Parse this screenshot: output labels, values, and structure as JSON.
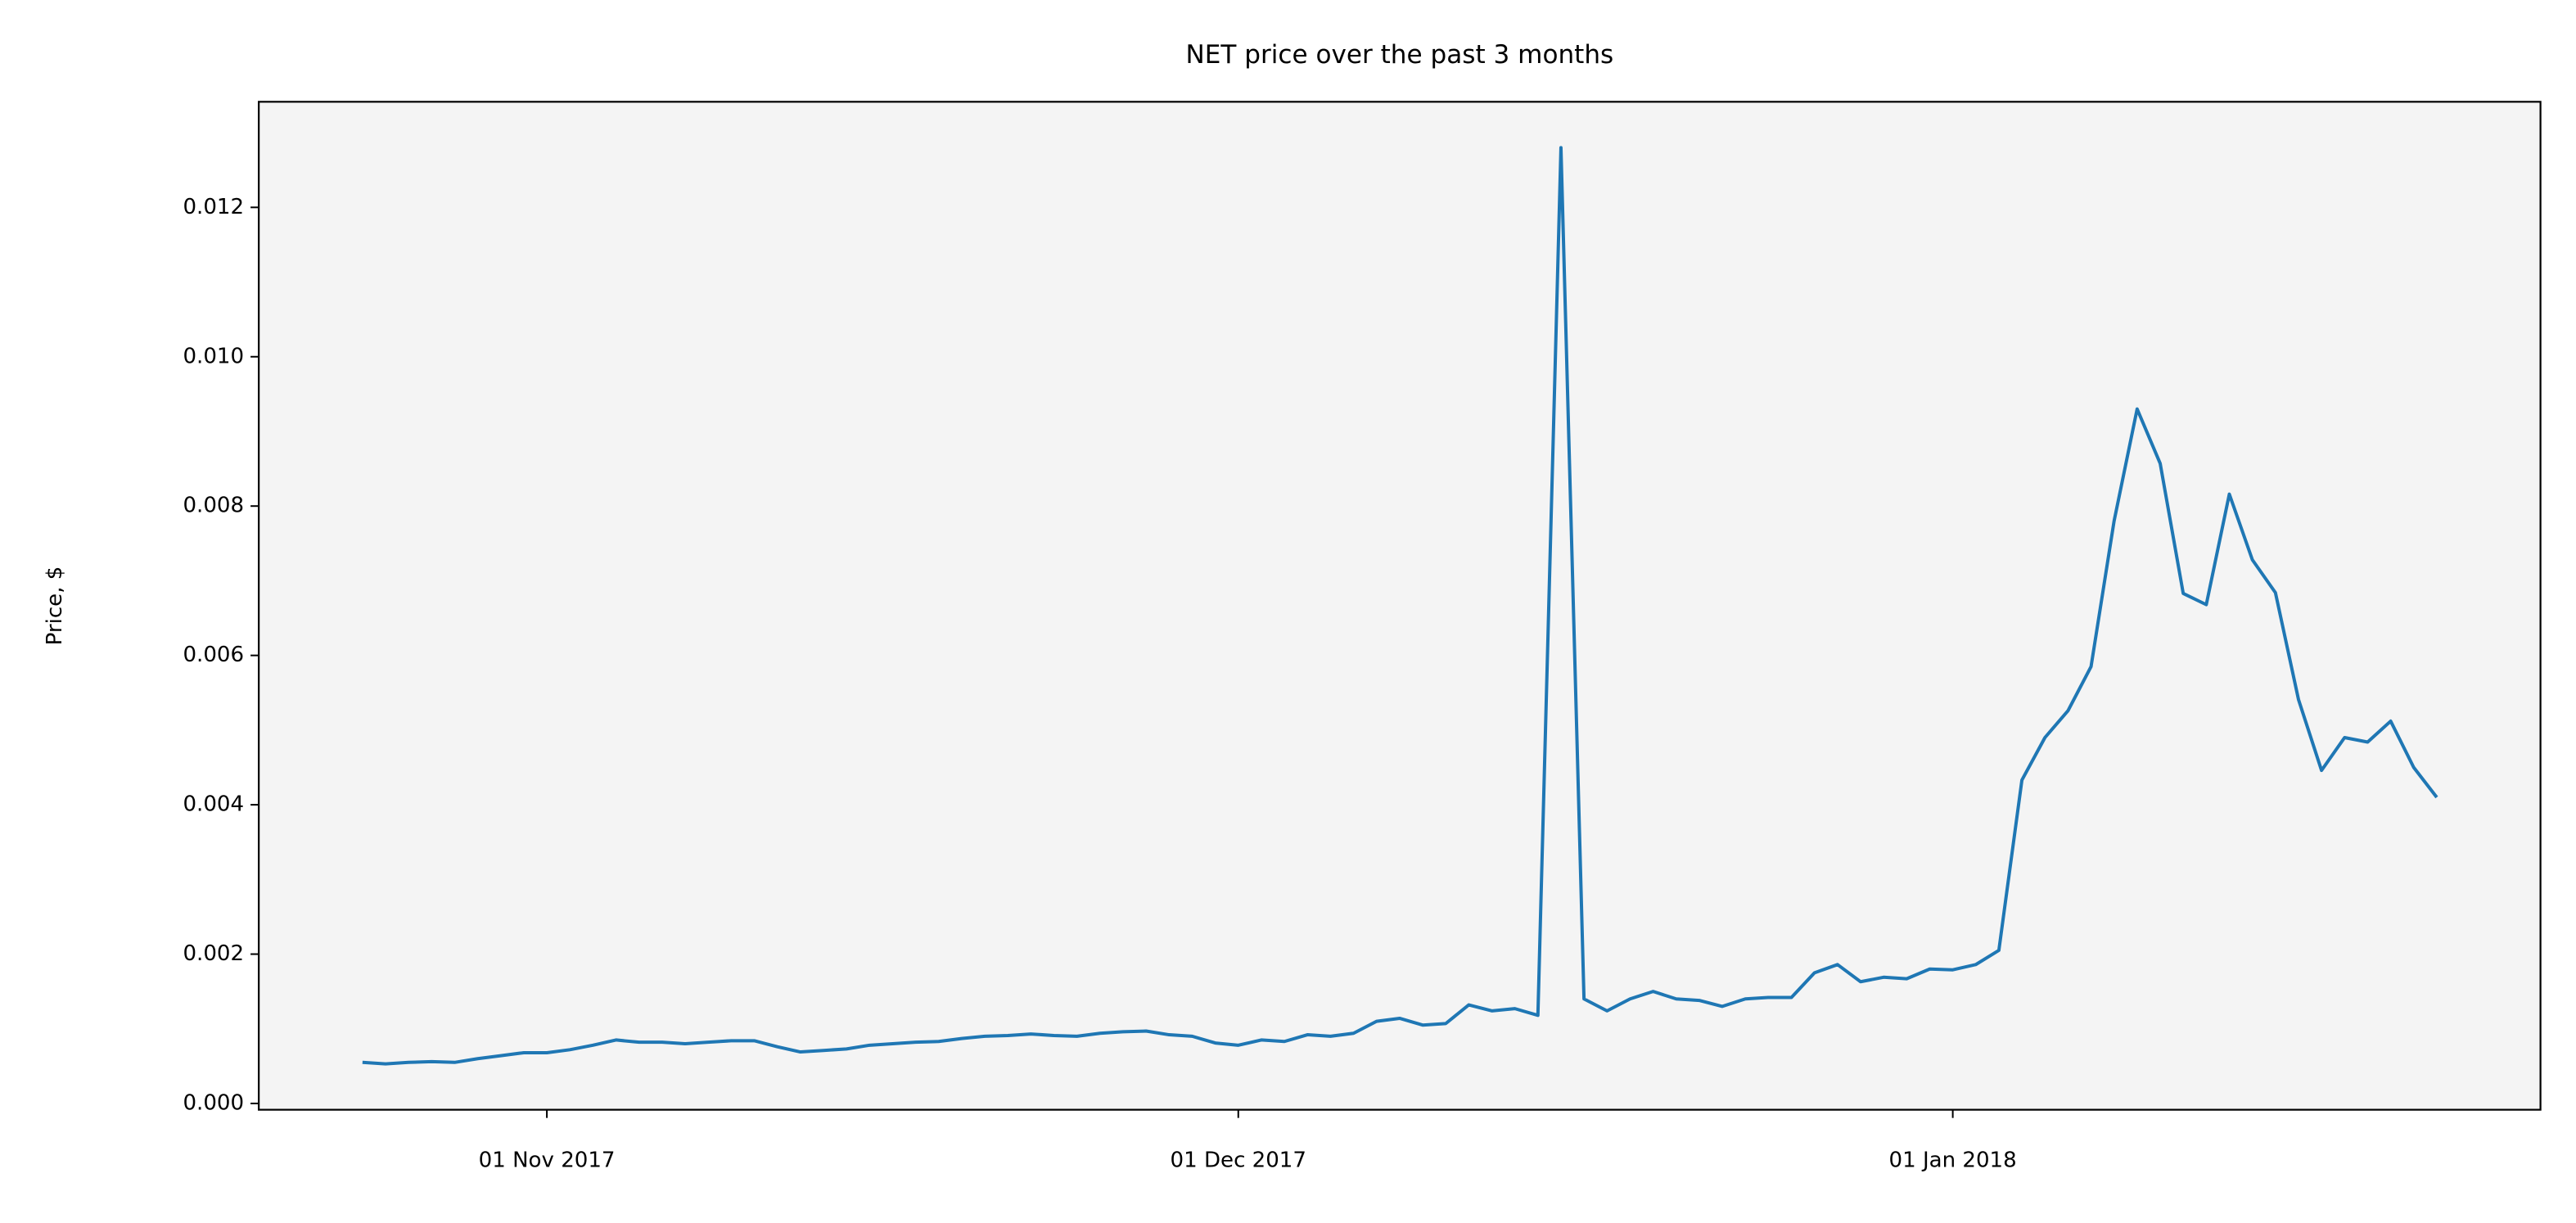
{
  "chart_data": {
    "type": "line",
    "title": "NET price over the past 3 months",
    "ylabel": "Price, $",
    "x": [
      "2017-10-24",
      "2017-10-25",
      "2017-10-26",
      "2017-10-27",
      "2017-10-28",
      "2017-10-29",
      "2017-10-30",
      "2017-10-31",
      "2017-11-01",
      "2017-11-02",
      "2017-11-03",
      "2017-11-04",
      "2017-11-05",
      "2017-11-06",
      "2017-11-07",
      "2017-11-08",
      "2017-11-09",
      "2017-11-10",
      "2017-11-11",
      "2017-11-12",
      "2017-11-13",
      "2017-11-14",
      "2017-11-15",
      "2017-11-16",
      "2017-11-17",
      "2017-11-18",
      "2017-11-19",
      "2017-11-20",
      "2017-11-21",
      "2017-11-22",
      "2017-11-23",
      "2017-11-24",
      "2017-11-25",
      "2017-11-26",
      "2017-11-27",
      "2017-11-28",
      "2017-11-29",
      "2017-11-30",
      "2017-12-01",
      "2017-12-02",
      "2017-12-03",
      "2017-12-04",
      "2017-12-05",
      "2017-12-06",
      "2017-12-07",
      "2017-12-08",
      "2017-12-09",
      "2017-12-10",
      "2017-12-11",
      "2017-12-12",
      "2017-12-13",
      "2017-12-14",
      "2017-12-15",
      "2017-12-16",
      "2017-12-17",
      "2017-12-18",
      "2017-12-19",
      "2017-12-20",
      "2017-12-21",
      "2017-12-22",
      "2017-12-23",
      "2017-12-24",
      "2017-12-25",
      "2017-12-26",
      "2017-12-27",
      "2017-12-28",
      "2017-12-29",
      "2017-12-30",
      "2017-12-31",
      "2018-01-01",
      "2018-01-02",
      "2018-01-03",
      "2018-01-04",
      "2018-01-05",
      "2018-01-06",
      "2018-01-07",
      "2018-01-08",
      "2018-01-09",
      "2018-01-10",
      "2018-01-11",
      "2018-01-12",
      "2018-01-13",
      "2018-01-14",
      "2018-01-15",
      "2018-01-16",
      "2018-01-17",
      "2018-01-18",
      "2018-01-19",
      "2018-01-20",
      "2018-01-21",
      "2018-01-22"
    ],
    "series": [
      {
        "name": "NET",
        "color": "#1f77b4",
        "values": [
          0.00055,
          0.00053,
          0.00055,
          0.00056,
          0.00055,
          0.0006,
          0.00064,
          0.00068,
          0.00068,
          0.00072,
          0.00078,
          0.00085,
          0.00082,
          0.00082,
          0.0008,
          0.00082,
          0.00084,
          0.00084,
          0.00076,
          0.00069,
          0.00071,
          0.00073,
          0.00078,
          0.0008,
          0.00082,
          0.00083,
          0.00087,
          0.0009,
          0.00091,
          0.00093,
          0.00091,
          0.0009,
          0.00094,
          0.00096,
          0.00097,
          0.00092,
          0.0009,
          0.00081,
          0.00078,
          0.00085,
          0.00083,
          0.00092,
          0.0009,
          0.00094,
          0.0011,
          0.00114,
          0.00105,
          0.00107,
          0.00132,
          0.00124,
          0.00127,
          0.00118,
          0.0128,
          0.0014,
          0.00124,
          0.0014,
          0.0015,
          0.0014,
          0.00138,
          0.0013,
          0.0014,
          0.00142,
          0.00142,
          0.00175,
          0.00186,
          0.00163,
          0.00169,
          0.00167,
          0.0018,
          0.00179,
          0.00186,
          0.00205,
          0.00433,
          0.0049,
          0.00526,
          0.00585,
          0.0078,
          0.0093,
          0.00857,
          0.00683,
          0.00668,
          0.00816,
          0.00728,
          0.00684,
          0.00541,
          0.00446,
          0.0049,
          0.00484,
          0.00512,
          0.0045,
          0.0041
        ]
      }
    ],
    "xlim": [
      "2017-10-19T12:00",
      "2018-01-26T12:00"
    ],
    "xticks": [
      {
        "value": "2017-11-01",
        "label": "01 Nov 2017"
      },
      {
        "value": "2017-12-01",
        "label": "01 Dec 2017"
      },
      {
        "value": "2018-01-01",
        "label": "01 Jan 2018"
      }
    ],
    "ylim": [
      -8.4e-05,
      0.013414
    ],
    "yticks": [
      {
        "value": 0,
        "label": "0.000"
      },
      0.002,
      0.004,
      0.006,
      0.008,
      {
        "value": 0.01,
        "label": "0.010"
      },
      0.012
    ],
    "background": "#f4f4f4",
    "grid": false
  }
}
